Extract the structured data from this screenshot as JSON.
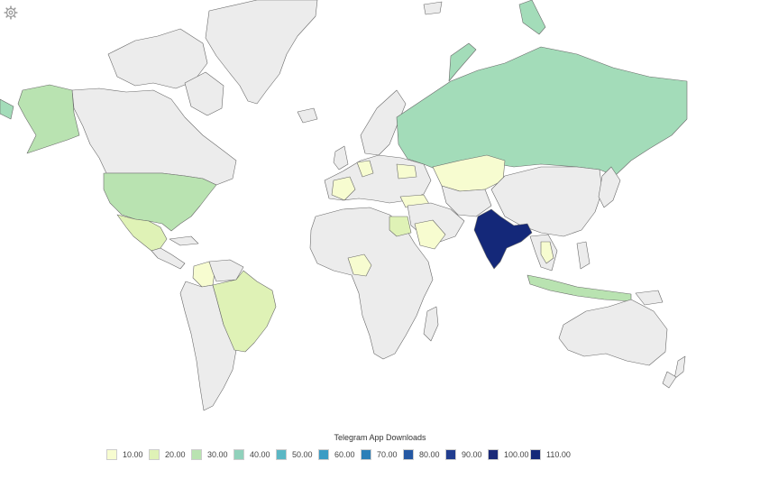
{
  "legend": {
    "title": "Telegram App Downloads",
    "items": [
      {
        "label": "10.00",
        "color": "#f7fcd0"
      },
      {
        "label": "20.00",
        "color": "#dff2b6"
      },
      {
        "label": "30.00",
        "color": "#b9e3b1"
      },
      {
        "label": "40.00",
        "color": "#90d1bb"
      },
      {
        "label": "50.00",
        "color": "#5bb7c4"
      },
      {
        "label": "60.00",
        "color": "#3b9cc4"
      },
      {
        "label": "70.00",
        "color": "#2b7fb8"
      },
      {
        "label": "80.00",
        "color": "#2458a3"
      },
      {
        "label": "90.00",
        "color": "#213d8f"
      },
      {
        "label": "100.00",
        "color": "#1b2a78"
      },
      {
        "label": "110.00",
        "color": "#142879"
      }
    ]
  },
  "map": {
    "no_data_color": "#ececec",
    "regions": [
      {
        "name": "Greenland",
        "color": "#ececec"
      },
      {
        "name": "Canada",
        "color": "#ececec"
      },
      {
        "name": "Alaska",
        "color": "#b9e3b1"
      },
      {
        "name": "United States",
        "color": "#b9e3b1"
      },
      {
        "name": "Mexico",
        "color": "#dff2b6"
      },
      {
        "name": "Colombia",
        "color": "#f7fcd0"
      },
      {
        "name": "Brazil",
        "color": "#dff2b6"
      },
      {
        "name": "South America",
        "color": "#ececec"
      },
      {
        "name": "Africa",
        "color": "#ececec"
      },
      {
        "name": "Nigeria",
        "color": "#f7fcd0"
      },
      {
        "name": "Europe",
        "color": "#ececec"
      },
      {
        "name": "France",
        "color": "#f7fcd0"
      },
      {
        "name": "Germany",
        "color": "#f7fcd0"
      },
      {
        "name": "Ukraine",
        "color": "#f7fcd0"
      },
      {
        "name": "Turkey",
        "color": "#f7fcd0"
      },
      {
        "name": "Egypt",
        "color": "#dff2b6"
      },
      {
        "name": "Saudi Arabia",
        "color": "#f7fcd0"
      },
      {
        "name": "Russia",
        "color": "#a3dcb9"
      },
      {
        "name": "Kazakhstan",
        "color": "#f7fcd0"
      },
      {
        "name": "Asia",
        "color": "#ececec"
      },
      {
        "name": "India",
        "color": "#142879"
      },
      {
        "name": "Vietnam",
        "color": "#f7fcd0"
      },
      {
        "name": "Indonesia",
        "color": "#b9e3b1"
      },
      {
        "name": "Australia",
        "color": "#ececec"
      }
    ]
  }
}
